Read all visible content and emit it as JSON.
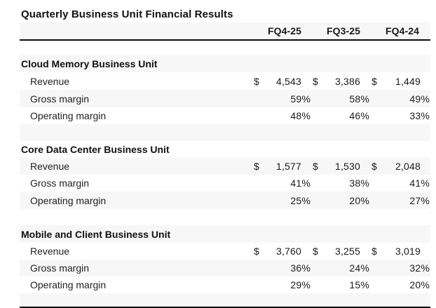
{
  "chart_data": {
    "type": "table",
    "title": "Quarterly Business Unit Financial Results",
    "columns": [
      "FQ4-25",
      "FQ3-25",
      "FQ4-24"
    ],
    "currency": "$",
    "sections": [
      {
        "name": "Cloud Memory Business Unit",
        "rows": [
          {
            "label": "Revenue",
            "format": "currency",
            "values": [
              "4,543",
              "3,386",
              "1,449"
            ]
          },
          {
            "label": "Gross margin",
            "format": "percent",
            "values": [
              "59%",
              "58%",
              "49%"
            ]
          },
          {
            "label": "Operating margin",
            "format": "percent",
            "values": [
              "48%",
              "46%",
              "33%"
            ]
          }
        ]
      },
      {
        "name": "Core Data Center Business Unit",
        "rows": [
          {
            "label": "Revenue",
            "format": "currency",
            "values": [
              "1,577",
              "1,530",
              "2,048"
            ]
          },
          {
            "label": "Gross margin",
            "format": "percent",
            "values": [
              "41%",
              "38%",
              "41%"
            ]
          },
          {
            "label": "Operating margin",
            "format": "percent",
            "values": [
              "25%",
              "20%",
              "27%"
            ]
          }
        ]
      },
      {
        "name": "Mobile and Client Business Unit",
        "rows": [
          {
            "label": "Revenue",
            "format": "currency",
            "values": [
              "3,760",
              "3,255",
              "3,019"
            ]
          },
          {
            "label": "Gross margin",
            "format": "percent",
            "values": [
              "36%",
              "24%",
              "32%"
            ]
          },
          {
            "label": "Operating margin",
            "format": "percent",
            "values": [
              "29%",
              "15%",
              "20%"
            ]
          }
        ]
      }
    ],
    "layout": {
      "banding": "alternating",
      "band_color": "#f7f7f7",
      "rule_color": "#0d0d0d"
    }
  }
}
